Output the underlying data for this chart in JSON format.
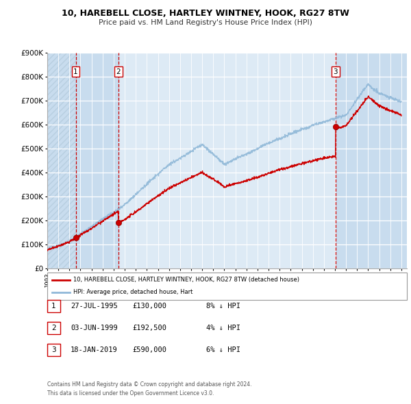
{
  "title": "10, HAREBELL CLOSE, HARTLEY WINTNEY, HOOK, RG27 8TW",
  "subtitle": "Price paid vs. HM Land Registry's House Price Index (HPI)",
  "hpi_label": "HPI: Average price, detached house, Hart",
  "property_label": "10, HAREBELL CLOSE, HARTLEY WINTNEY, HOOK, RG27 8TW (detached house)",
  "sales": [
    {
      "num": 1,
      "date": "27-JUL-1995",
      "price": 130000,
      "pct": "8%",
      "dir": "↓",
      "year": 1995.57
    },
    {
      "num": 2,
      "date": "03-JUN-1999",
      "price": 192500,
      "pct": "4%",
      "dir": "↓",
      "year": 1999.42
    },
    {
      "num": 3,
      "date": "18-JAN-2019",
      "price": 590000,
      "pct": "6%",
      "dir": "↓",
      "year": 2019.05
    }
  ],
  "property_color": "#cc0000",
  "hpi_color": "#90b8d8",
  "vline_color": "#cc0000",
  "plot_bg_color": "#ddeaf5",
  "band_color": "#c8dcee",
  "hatch_color": "#b8cfe0",
  "ylim": [
    0,
    900000
  ],
  "yticks": [
    0,
    100000,
    200000,
    300000,
    400000,
    500000,
    600000,
    700000,
    800000,
    900000
  ],
  "xstart": 1993,
  "xend": 2025,
  "footnote1": "Contains HM Land Registry data © Crown copyright and database right 2024.",
  "footnote2": "This data is licensed under the Open Government Licence v3.0."
}
